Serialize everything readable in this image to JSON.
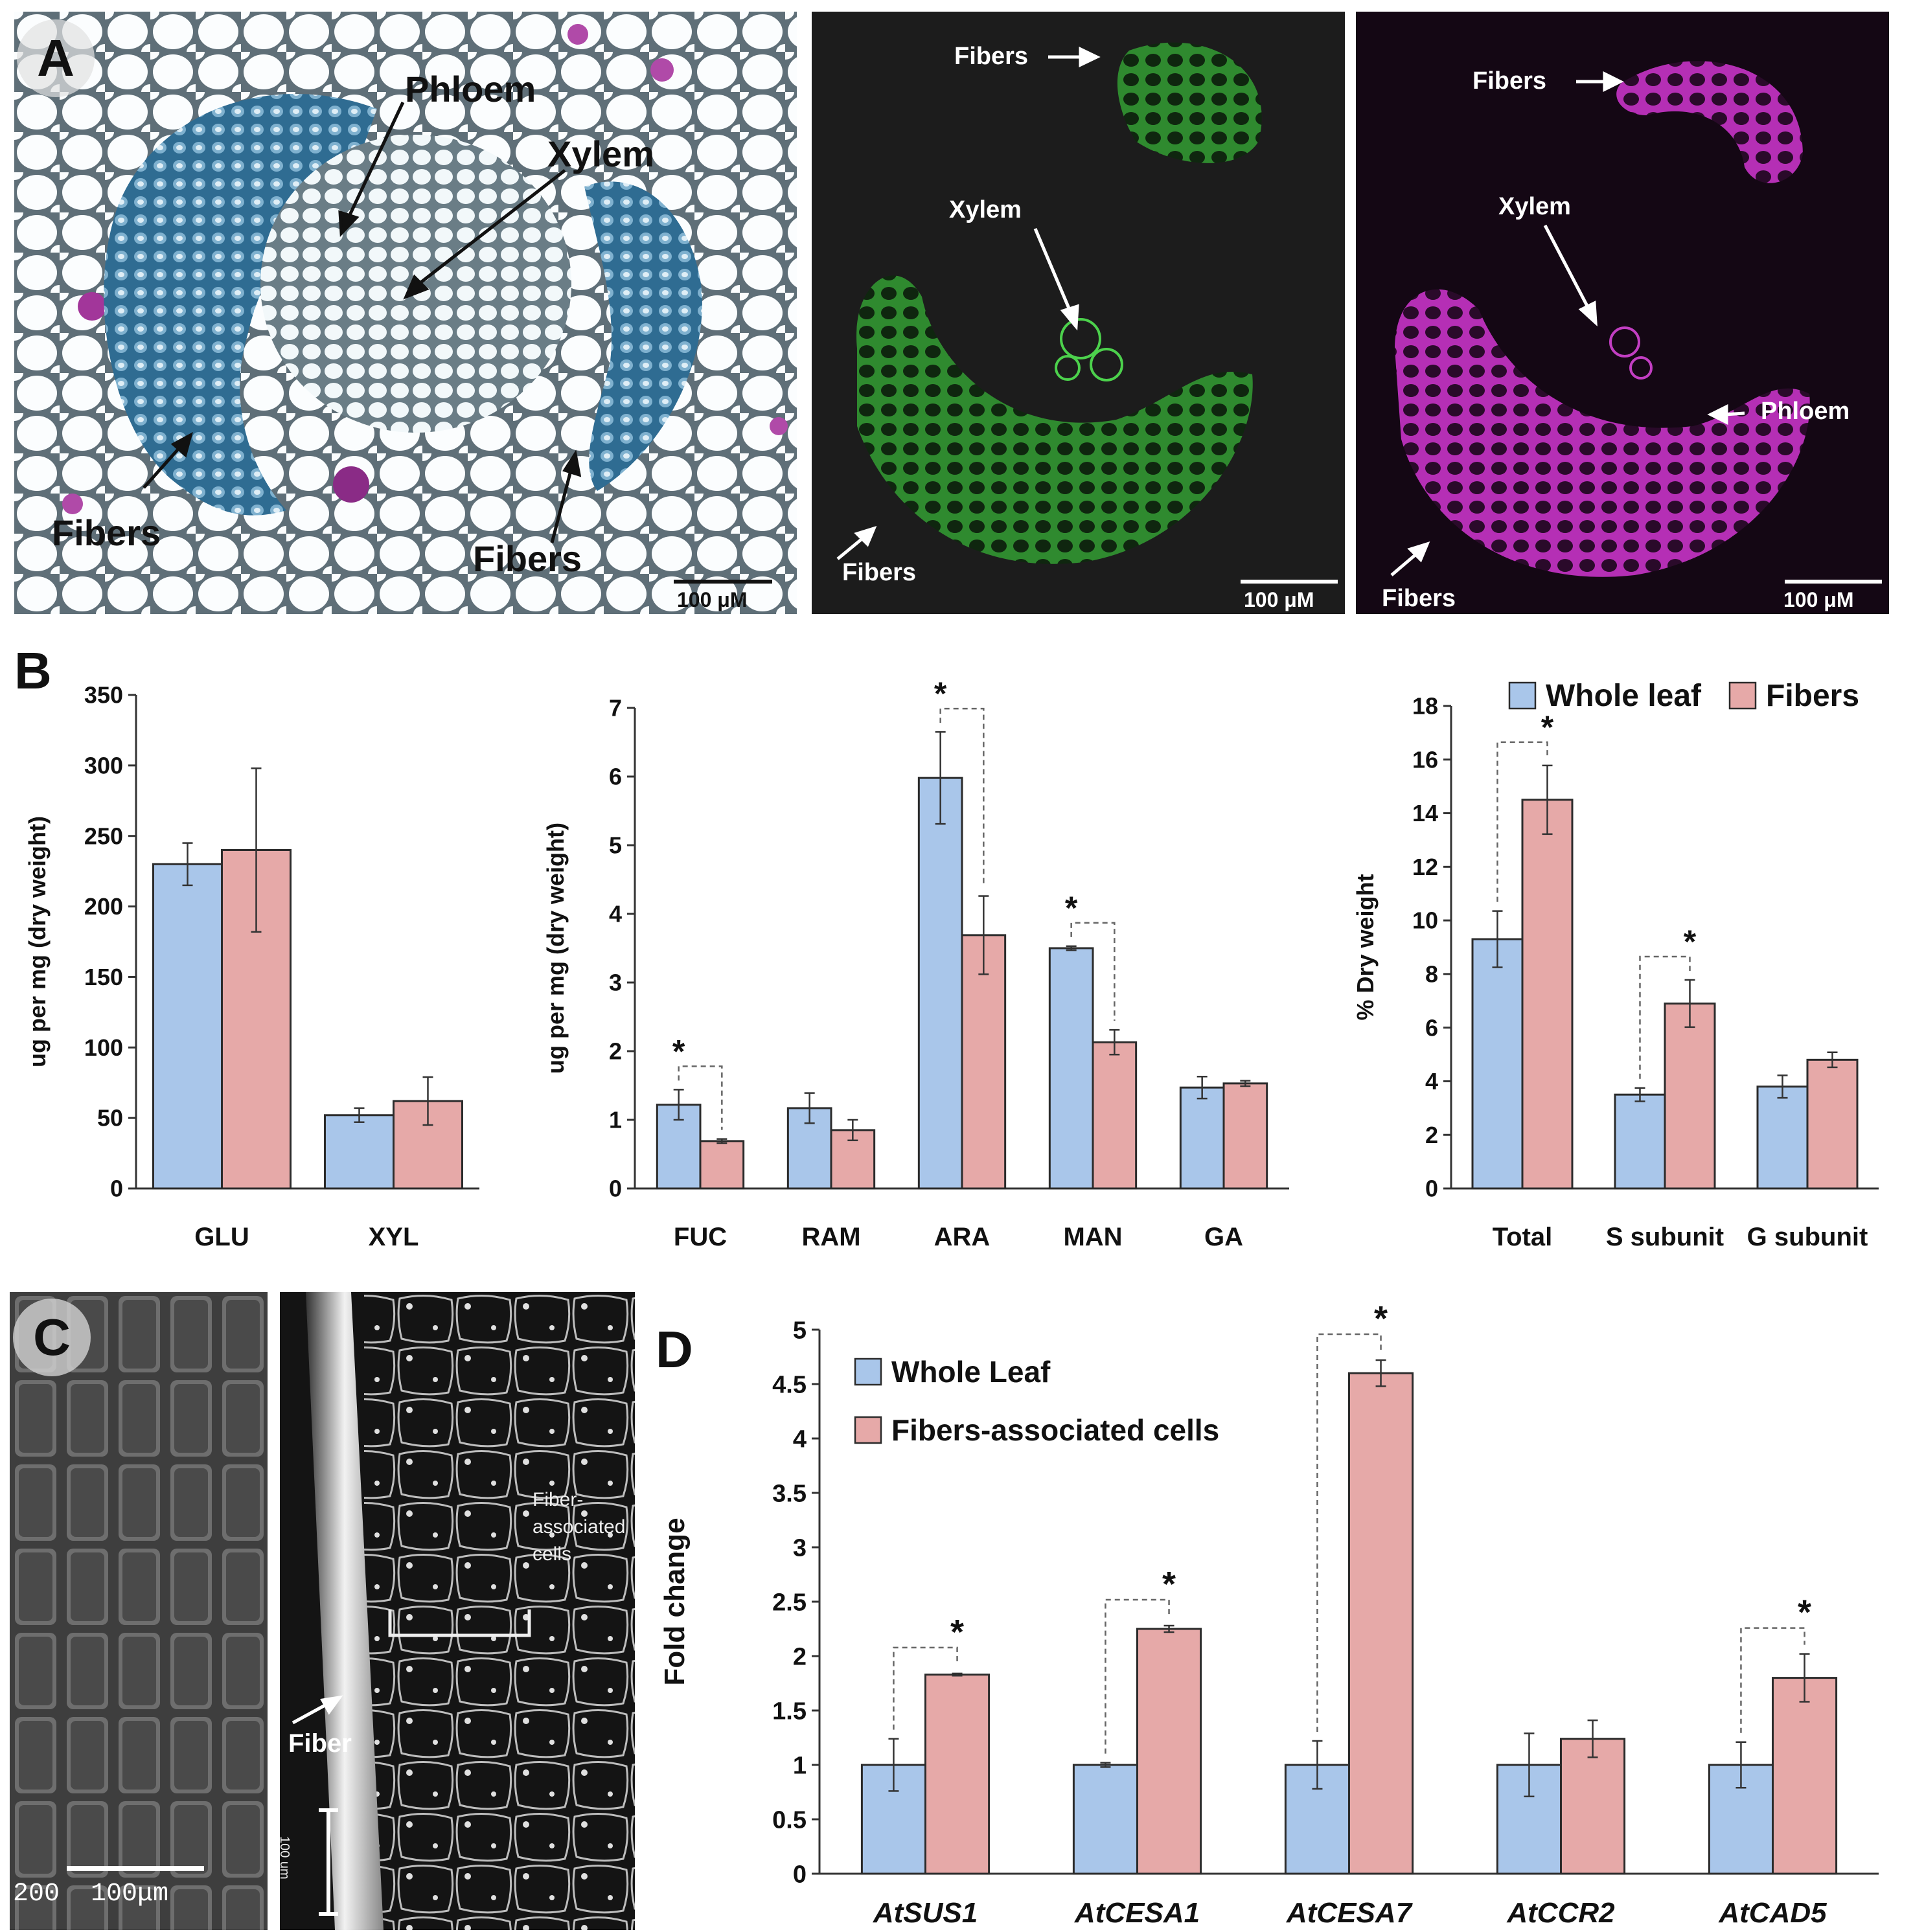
{
  "panel_letters": {
    "a": "A",
    "b": "B",
    "c": "C",
    "d": "D"
  },
  "panel_a": {
    "left": {
      "phloem": "Phloem",
      "xylem": "Xylem",
      "fibers_left": "Fibers",
      "fibers_right": "Fibers",
      "scale": "100 μM"
    },
    "middle": {
      "fibers_top": "Fibers",
      "xylem": "Xylem",
      "fibers_bottom": "Fibers",
      "scale": "100 μM"
    },
    "right": {
      "fibers_top": "Fibers",
      "xylem": "Xylem",
      "phloem": "Phloem",
      "fibers_bottom": "Fibers",
      "scale": "100 μM"
    }
  },
  "panel_c": {
    "sem_scale": "200  100μm",
    "fiber_assoc": "Fiber-\nassociated\ncells",
    "fiber": "Fiber",
    "vert_scale": "100 um"
  },
  "colors": {
    "whole_leaf": "#a9c6ea",
    "fibers": "#e6a9a8",
    "bar_stroke": "#2b2b2b"
  },
  "chart_data": [
    {
      "id": "B1",
      "type": "bar",
      "categories": [
        "GLU",
        "XYL"
      ],
      "series": [
        {
          "values": [
            230,
            52
          ],
          "errors": [
            15,
            5
          ]
        },
        {
          "values": [
            240,
            62
          ],
          "errors": [
            58,
            17
          ]
        }
      ],
      "ylabel": "ug per mg (dry weight)",
      "ylim": [
        0,
        350
      ],
      "ticks": [
        "0",
        "50",
        "100",
        "150",
        "200",
        "250",
        "300",
        "350"
      ]
    },
    {
      "id": "B2",
      "type": "bar",
      "categories": [
        "FUC",
        "RAM",
        "ARA",
        "MAN",
        "GA"
      ],
      "series": [
        {
          "values": [
            1.22,
            1.17,
            5.98,
            3.5,
            1.47
          ],
          "errors": [
            0.22,
            0.22,
            0.67,
            0.03,
            0.16
          ]
        },
        {
          "values": [
            0.69,
            0.85,
            3.69,
            2.13,
            1.53
          ],
          "errors": [
            0.03,
            0.15,
            0.57,
            0.18,
            0.04
          ]
        }
      ],
      "significant": [
        "FUC",
        "ARA",
        "MAN"
      ],
      "ylabel": "ug per mg (dry weight)",
      "ylim": [
        0,
        7
      ],
      "ticks": [
        "0",
        "1",
        "2",
        "3",
        "4",
        "5",
        "6",
        "7"
      ]
    },
    {
      "id": "B3",
      "type": "bar",
      "categories": [
        "Total",
        "S subunit",
        "G subunit"
      ],
      "series": [
        {
          "name": "Whole leaf",
          "values": [
            9.3,
            3.5,
            3.8
          ],
          "errors": [
            1.05,
            0.25,
            0.42
          ]
        },
        {
          "name": "Fibers",
          "values": [
            14.5,
            6.9,
            4.8
          ],
          "errors": [
            1.28,
            0.88,
            0.28
          ]
        }
      ],
      "significant": [
        "Total",
        "S subunit"
      ],
      "ylabel": "% Dry weight",
      "ylim": [
        0,
        18
      ],
      "ticks": [
        "0",
        "2",
        "4",
        "6",
        "8",
        "10",
        "12",
        "14",
        "16",
        "18"
      ],
      "legend": "top-right"
    },
    {
      "id": "D",
      "type": "bar",
      "categories": [
        "AtSUS1",
        "AtCESA1",
        "AtCESA7",
        "AtCCR2",
        "AtCAD5"
      ],
      "series": [
        {
          "name": "Whole Leaf",
          "values": [
            1,
            1,
            1,
            1,
            1
          ],
          "errors": [
            0.24,
            0.02,
            0.22,
            0.29,
            0.21
          ]
        },
        {
          "name": "Fibers-associated cells",
          "values": [
            1.83,
            2.25,
            4.6,
            1.24,
            1.8
          ],
          "errors": [
            0.01,
            0.03,
            0.12,
            0.17,
            0.22
          ]
        }
      ],
      "significant": [
        "AtSUS1",
        "AtCESA1",
        "AtCESA7",
        "AtCAD5"
      ],
      "ylabel": "Fold change",
      "ylim": [
        0,
        5
      ],
      "ticks": [
        "0",
        "0.5",
        "1",
        "1.5",
        "2",
        "2.5",
        "3",
        "3.5",
        "4",
        "4.5",
        "5"
      ],
      "legend": "top-left"
    }
  ]
}
